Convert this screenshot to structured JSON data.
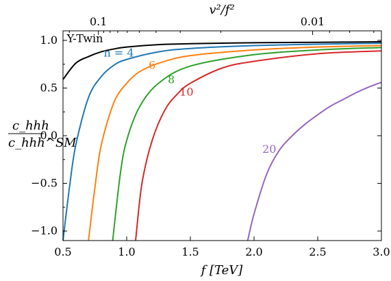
{
  "chart_data": {
    "type": "line",
    "title": "",
    "xlabel": "f [TeV]",
    "ylabel_numerator": "c_hhh",
    "ylabel_denominator": "c_hhh^SM",
    "top_xlabel": "v²/f²",
    "xlim": [
      0.5,
      3.0
    ],
    "ylim": [
      -1.1,
      1.1
    ],
    "top_axis_scale": "log",
    "x_ticks": [
      "0.5",
      "1.0",
      "1.5",
      "2.0",
      "2.5",
      "3.0"
    ],
    "x_tick_values": [
      0.5,
      1.0,
      1.5,
      2.0,
      2.5,
      3.0
    ],
    "y_ticks": [
      "−1.0",
      "−0.5",
      "0.0",
      "0.5",
      "1.0"
    ],
    "y_tick_values": [
      -1.0,
      -0.5,
      0.0,
      0.5,
      1.0
    ],
    "top_ticks": [
      "0.1",
      "0.01"
    ],
    "top_tick_values": [
      0.1,
      0.01
    ],
    "grid": false,
    "legend": "none (inline labels)",
    "series": [
      {
        "name": "Y-Twin",
        "color": "#000000",
        "x": [
          0.5,
          0.6,
          0.7,
          0.8,
          0.9,
          1.0,
          1.25,
          1.5,
          2.0,
          2.5,
          3.0
        ],
        "y": [
          0.59,
          0.76,
          0.83,
          0.88,
          0.91,
          0.93,
          0.955,
          0.965,
          0.975,
          0.98,
          0.985
        ]
      },
      {
        "name": "n = 4",
        "color": "#1f77b4",
        "x": [
          0.5,
          0.55,
          0.6,
          0.7,
          0.8,
          0.9,
          1.0,
          1.25,
          1.5,
          2.0,
          2.5,
          3.0
        ],
        "y": [
          -1.1,
          -0.55,
          -0.1,
          0.4,
          0.62,
          0.74,
          0.8,
          0.88,
          0.915,
          0.945,
          0.96,
          0.97
        ]
      },
      {
        "name": "6",
        "color": "#ff7f0e",
        "x": [
          0.7,
          0.75,
          0.8,
          0.9,
          1.0,
          1.1,
          1.25,
          1.5,
          2.0,
          2.5,
          3.0
        ],
        "y": [
          -1.1,
          -0.55,
          -0.1,
          0.35,
          0.55,
          0.67,
          0.76,
          0.84,
          0.9,
          0.93,
          0.945
        ]
      },
      {
        "name": "8",
        "color": "#2ca02c",
        "x": [
          0.89,
          0.95,
          1.0,
          1.1,
          1.25,
          1.5,
          2.0,
          2.5,
          3.0
        ],
        "y": [
          -1.1,
          -0.4,
          -0.05,
          0.3,
          0.55,
          0.73,
          0.85,
          0.9,
          0.925
        ]
      },
      {
        "name": "10",
        "color": "#d62728",
        "x": [
          1.07,
          1.12,
          1.2,
          1.3,
          1.4,
          1.5,
          1.75,
          2.0,
          2.5,
          3.0
        ],
        "y": [
          -1.1,
          -0.5,
          -0.05,
          0.27,
          0.44,
          0.55,
          0.71,
          0.78,
          0.86,
          0.89
        ]
      },
      {
        "name": "20",
        "color": "#9467bd",
        "x": [
          1.95,
          2.0,
          2.1,
          2.2,
          2.3,
          2.4,
          2.5,
          2.6,
          2.7,
          2.8,
          2.9,
          3.0
        ],
        "y": [
          -1.1,
          -0.82,
          -0.4,
          -0.15,
          0.0,
          0.12,
          0.22,
          0.31,
          0.38,
          0.45,
          0.51,
          0.56
        ]
      }
    ]
  }
}
